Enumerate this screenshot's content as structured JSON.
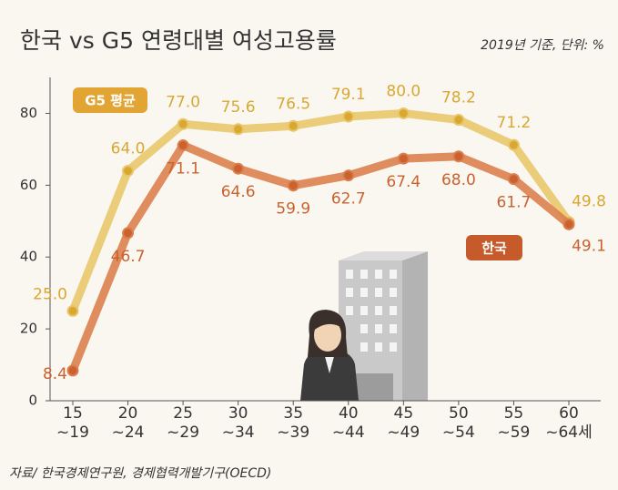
{
  "chart_data": {
    "type": "line",
    "title": "한국 vs G5 연령대별 여성고용률",
    "subtitle": "2019년 기준, 단위: %",
    "source": "자료/ 한국경제연구원, 경제협력개발기구(OECD)",
    "categories": [
      "15\n~19",
      "20\n~24",
      "25\n~29",
      "30\n~34",
      "35\n~39",
      "40\n~44",
      "45\n~49",
      "50\n~54",
      "55\n~59",
      "60\n~64세"
    ],
    "series": [
      {
        "name": "G5 평균",
        "color": "#e9c66a",
        "label_color": "#d9a832",
        "legend_color": "#e2a534",
        "values": [
          25.0,
          64.0,
          77.0,
          75.6,
          76.5,
          79.1,
          80.0,
          78.2,
          71.2,
          49.8
        ],
        "value_labels": [
          "25.0",
          "64.0",
          "77.0",
          "75.6",
          "76.5",
          "79.1",
          "80.0",
          "78.2",
          "71.2",
          "49.8"
        ]
      },
      {
        "name": "한국",
        "color": "#dc7f4e",
        "label_color": "#c9622e",
        "legend_color": "#c75a2a",
        "values": [
          8.4,
          46.7,
          71.1,
          64.6,
          59.9,
          62.7,
          67.4,
          68.0,
          61.7,
          49.1
        ],
        "value_labels": [
          "8.4",
          "46.7",
          "71.1",
          "64.6",
          "59.9",
          "62.7",
          "67.4",
          "68.0",
          "61.7",
          "49.1"
        ]
      }
    ],
    "ylim": [
      0,
      90
    ],
    "yticks": [
      0,
      20,
      40,
      60,
      80
    ]
  }
}
